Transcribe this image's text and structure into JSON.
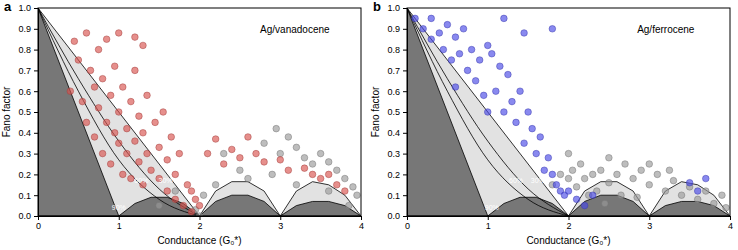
{
  "chart_data": [
    {
      "type": "scatter",
      "title": "a",
      "x_label": "Conductance (G₀*)",
      "y_label": "Fano factor",
      "xlim": [
        0,
        4
      ],
      "ylim": [
        0,
        1
      ],
      "xticks": [
        0,
        1,
        2,
        3,
        4
      ],
      "yticks": [
        {
          "value": 0,
          "label": "0.0"
        },
        {
          "value": 0.1,
          "label": "0.1"
        },
        {
          "value": 0.2,
          "label": "0.2"
        },
        {
          "value": 0.3,
          "label": "0.3"
        },
        {
          "value": 0.4,
          "label": "0.4"
        },
        {
          "value": 0.5,
          "label": "0.5"
        },
        {
          "value": 0.6,
          "label": "0.6"
        },
        {
          "value": 0.7,
          "label": "0.7"
        },
        {
          "value": 0.8,
          "label": "0.8"
        },
        {
          "value": 0.9,
          "label": "0.9"
        },
        {
          "value": 1,
          "label": "1.0"
        }
      ],
      "series": [
        {
          "type": "area",
          "color": "#e2e2e2",
          "x": [
            0,
            1,
            2,
            2.2,
            2.4,
            2.6,
            2.8,
            3,
            3.2,
            3.4,
            3.6,
            3.8,
            4
          ],
          "values": [
            1,
            0.5,
            0,
            0.12,
            0.165,
            0.165,
            0.12,
            0,
            0.12,
            0.165,
            0.15,
            0.1,
            0
          ]
        },
        {
          "type": "area",
          "color": "#777777",
          "x": [
            0,
            1,
            1.2,
            1.4,
            1.6,
            1.8,
            2,
            2.2,
            2.4,
            2.6,
            2.8,
            3,
            3.2,
            3.4,
            3.6,
            3.8,
            4
          ],
          "values": [
            1,
            0,
            0.06,
            0.09,
            0.09,
            0.06,
            0,
            0.07,
            0.1,
            0.1,
            0.07,
            0,
            0.05,
            0.07,
            0.07,
            0.05,
            0
          ]
        },
        {
          "type": "line",
          "color": "#000000",
          "x": [
            0,
            0.5,
            1,
            1.5,
            2
          ],
          "values": [
            1,
            0.6,
            0.27,
            0.08,
            0
          ]
        },
        {
          "type": "line",
          "color": "#000000",
          "x": [
            0,
            0.5,
            1,
            1.5,
            2
          ],
          "values": [
            1,
            0.66,
            0.36,
            0.13,
            0
          ]
        },
        {
          "type": "scatter",
          "marker": "circle",
          "color": "#9a9a9a",
          "x": [
            1.5,
            1.7,
            1.95,
            2.05,
            2.2,
            2.5,
            2.6,
            2.8,
            2.9,
            3.0,
            3.1,
            3.2,
            3.3,
            3.4,
            3.5,
            3.6,
            3.7,
            3.8,
            3.9,
            3.95,
            3.85,
            3.6,
            2.0,
            2.3,
            3.2,
            2.95
          ],
          "values": [
            0.05,
            0.12,
            0.03,
            0.1,
            0.15,
            0.22,
            0.18,
            0.35,
            0.2,
            0.3,
            0.38,
            0.33,
            0.28,
            0.25,
            0.3,
            0.26,
            0.22,
            0.18,
            0.14,
            0.1,
            0.05,
            0.12,
            0.0,
            0.3,
            0.15,
            0.42
          ]
        },
        {
          "type": "scatter",
          "marker": "circle",
          "color": "#d9534f",
          "x": [
            0.4,
            0.45,
            0.5,
            0.55,
            0.6,
            0.6,
            0.65,
            0.7,
            0.7,
            0.75,
            0.75,
            0.8,
            0.8,
            0.85,
            0.85,
            0.9,
            0.9,
            0.95,
            0.95,
            1.0,
            1.0,
            1.05,
            1.05,
            1.1,
            1.1,
            1.15,
            1.15,
            1.2,
            1.2,
            1.25,
            1.25,
            1.3,
            1.3,
            1.35,
            1.35,
            1.4,
            1.45,
            1.5,
            1.5,
            1.55,
            1.6,
            1.6,
            1.65,
            1.7,
            1.7,
            1.75,
            1.8,
            1.85,
            1.9,
            1.95,
            1.2,
            1.3,
            1.0,
            2.1,
            2.2,
            2.3,
            2.4,
            2.5,
            2.7,
            2.8,
            3.0,
            3.1,
            3.3,
            3.4,
            3.5,
            3.6,
            3.7,
            3.8,
            2.6,
            2.0,
            1.9
          ],
          "values": [
            0.6,
            0.84,
            0.75,
            0.55,
            0.88,
            0.45,
            0.7,
            0.62,
            0.38,
            0.8,
            0.52,
            0.3,
            0.66,
            0.45,
            0.85,
            0.25,
            0.58,
            0.4,
            0.72,
            0.35,
            0.5,
            0.2,
            0.62,
            0.42,
            0.3,
            0.55,
            0.18,
            0.36,
            0.7,
            0.26,
            0.48,
            0.4,
            0.15,
            0.58,
            0.3,
            0.22,
            0.45,
            0.18,
            0.33,
            0.5,
            0.12,
            0.27,
            0.38,
            0.08,
            0.2,
            0.3,
            0.05,
            0.15,
            0.02,
            0.08,
            0.86,
            0.82,
            0.88,
            0.3,
            0.37,
            0.25,
            0.32,
            0.28,
            0.3,
            0.26,
            0.27,
            0.22,
            0.23,
            0.2,
            0.18,
            0.2,
            0.15,
            0.12,
            0.38,
            0.05,
            0.12
          ]
        }
      ],
      "annotations": [
        {
          "text": "Ag/vanadocene",
          "x": 2.75,
          "y": 0.88,
          "color": "#000000"
        },
        {
          "text": "90%",
          "x": 1.0,
          "y": 0.03,
          "color": "#ffffff"
        },
        {
          "text": "60%",
          "x": 1.28,
          "y": 0.16,
          "color": "#ffffff"
        },
        {
          "text": "30%",
          "x": 1.58,
          "y": 0.16,
          "color": "#ffffff"
        }
      ]
    },
    {
      "type": "scatter",
      "title": "b",
      "x_label": "Conductance (G₀*)",
      "y_label": "Fano factor",
      "xlim": [
        0,
        4
      ],
      "ylim": [
        0,
        1
      ],
      "xticks": [
        0,
        1,
        2,
        3,
        4
      ],
      "yticks": [
        {
          "value": 0,
          "label": "0.0"
        },
        {
          "value": 0.1,
          "label": "0.1"
        },
        {
          "value": 0.2,
          "label": "0.2"
        },
        {
          "value": 0.3,
          "label": "0.3"
        },
        {
          "value": 0.4,
          "label": "0.4"
        },
        {
          "value": 0.5,
          "label": "0.5"
        },
        {
          "value": 0.6,
          "label": "0.6"
        },
        {
          "value": 0.7,
          "label": "0.7"
        },
        {
          "value": 0.8,
          "label": "0.8"
        },
        {
          "value": 0.9,
          "label": "0.9"
        },
        {
          "value": 1,
          "label": "1.0"
        }
      ],
      "series": [
        {
          "type": "area",
          "color": "#e2e2e2",
          "x": [
            0,
            1,
            2,
            2.2,
            2.4,
            2.6,
            2.8,
            3,
            3.2,
            3.4,
            3.6,
            3.8,
            4
          ],
          "values": [
            1,
            0.5,
            0,
            0.12,
            0.165,
            0.165,
            0.12,
            0,
            0.12,
            0.165,
            0.15,
            0.1,
            0
          ]
        },
        {
          "type": "area",
          "color": "#777777",
          "x": [
            0,
            1,
            1.2,
            1.4,
            1.6,
            1.8,
            2,
            2.2,
            2.4,
            2.6,
            2.8,
            3,
            3.2,
            3.4,
            3.6,
            3.8,
            4
          ],
          "values": [
            1,
            0,
            0.06,
            0.09,
            0.09,
            0.06,
            0,
            0.07,
            0.1,
            0.1,
            0.07,
            0,
            0.05,
            0.07,
            0.07,
            0.05,
            0
          ]
        },
        {
          "type": "line",
          "color": "#000000",
          "x": [
            0,
            0.5,
            1,
            1.5,
            2
          ],
          "values": [
            1,
            0.6,
            0.27,
            0.08,
            0
          ]
        },
        {
          "type": "line",
          "color": "#000000",
          "x": [
            0,
            0.5,
            1,
            1.5,
            2
          ],
          "values": [
            1,
            0.66,
            0.36,
            0.13,
            0
          ]
        },
        {
          "type": "scatter",
          "marker": "circle",
          "color": "#9a9a9a",
          "x": [
            1.8,
            1.9,
            2.0,
            2.05,
            2.1,
            2.15,
            2.2,
            2.25,
            2.3,
            2.4,
            2.5,
            2.5,
            2.6,
            2.7,
            2.8,
            2.9,
            3.0,
            3.1,
            3.2,
            3.3,
            3.4,
            3.5,
            3.6,
            3.7,
            3.8,
            3.9,
            3.95,
            2.0,
            2.35,
            2.65,
            3.0,
            3.25,
            2.45,
            2.85
          ],
          "values": [
            0.15,
            0.2,
            0.18,
            0.22,
            0.14,
            0.25,
            0.18,
            0.1,
            0.2,
            0.22,
            0.16,
            0.28,
            0.2,
            0.25,
            0.18,
            0.22,
            0.15,
            0.2,
            0.12,
            0.17,
            0.1,
            0.14,
            0.08,
            0.12,
            0.06,
            0.1,
            0.04,
            0.3,
            0.12,
            0.1,
            0.25,
            0.22,
            0.06,
            0.09
          ]
        },
        {
          "type": "scatter",
          "marker": "circle",
          "color": "#4a4ae6",
          "x": [
            0.1,
            0.2,
            0.3,
            0.3,
            0.4,
            0.45,
            0.5,
            0.55,
            0.6,
            0.65,
            0.7,
            0.75,
            0.8,
            0.85,
            0.9,
            0.95,
            1.0,
            1.05,
            1.1,
            1.15,
            1.2,
            1.25,
            1.3,
            1.35,
            1.4,
            1.45,
            1.5,
            1.55,
            1.6,
            1.65,
            1.7,
            1.75,
            1.8,
            1.85,
            1.9,
            1.95,
            1.8,
            1.2,
            1.45,
            2.0,
            2.1,
            2.3,
            3.5,
            3.6,
            3.7,
            2.2,
            1.0,
            0.6
          ],
          "values": [
            0.95,
            0.9,
            0.85,
            0.95,
            0.88,
            0.8,
            0.92,
            0.75,
            0.86,
            0.78,
            0.9,
            0.7,
            0.8,
            0.65,
            0.75,
            0.58,
            0.82,
            0.78,
            0.6,
            0.72,
            0.5,
            0.68,
            0.55,
            0.45,
            0.6,
            0.35,
            0.5,
            0.42,
            0.3,
            0.38,
            0.22,
            0.28,
            0.2,
            0.15,
            0.12,
            0.1,
            0.9,
            0.95,
            0.88,
            0.12,
            0.08,
            0.1,
            0.16,
            0.12,
            0.18,
            0.05,
            0.5,
            0.62
          ]
        }
      ],
      "annotations": [
        {
          "text": "Ag/ferrocene",
          "x": 2.85,
          "y": 0.88,
          "color": "#000000"
        },
        {
          "text": "90%",
          "x": 1.05,
          "y": 0.03,
          "color": "#ffffff"
        },
        {
          "text": "60%",
          "x": 1.35,
          "y": 0.16,
          "color": "#ffffff"
        },
        {
          "text": "30%",
          "x": 1.62,
          "y": 0.16,
          "color": "#ffffff"
        }
      ]
    }
  ]
}
